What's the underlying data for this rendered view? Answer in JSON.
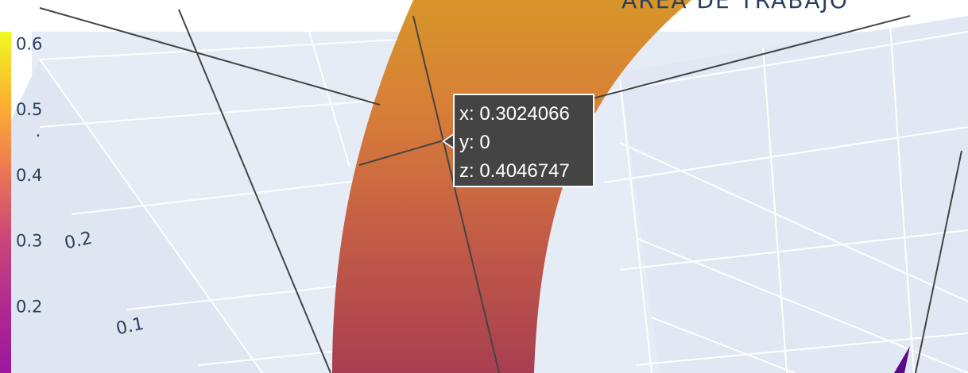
{
  "title": "ÁREA DE TRABAJO",
  "chart_data": {
    "type": "surface",
    "colorscale": "plasma",
    "colorbar": {
      "ticks": [
        "0.6",
        "0.5",
        "0.4",
        "0.3",
        "0.2"
      ],
      "range": [
        0.1,
        0.62
      ],
      "colors": [
        "#f0f921",
        "#fdb42f",
        "#ed7953",
        "#cc4778",
        "#9c179e",
        "#5c01a6",
        "#0d0887"
      ]
    },
    "axis_ticks": [
      "0.2",
      "0.1"
    ],
    "hover": {
      "x_label": "x: 0.3024066",
      "y_label": "y: 0",
      "z_label": "z: 0.4046747",
      "x": 0.3024066,
      "y": 0,
      "z": 0.4046747
    },
    "colors": {
      "plot_bg": "#e5ecf6",
      "grid": "#ffffff",
      "tooltip_bg": "#444444",
      "text": "#2a3f5f"
    }
  }
}
